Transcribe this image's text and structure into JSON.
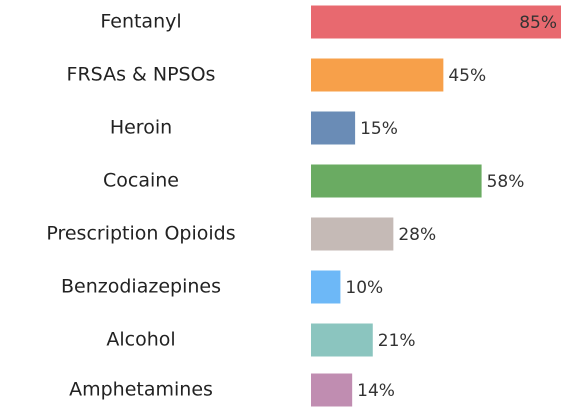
{
  "chart_data": {
    "type": "bar",
    "orientation": "horizontal",
    "categories": [
      "Fentanyl",
      "FRSAs & NPSOs",
      "Heroin",
      "Cocaine",
      "Prescription Opioids",
      "Benzodiazepines",
      "Alcohol",
      "Amphetamines"
    ],
    "values": [
      85,
      45,
      15,
      58,
      28,
      10,
      21,
      14
    ],
    "value_labels": [
      "85%",
      "45%",
      "15%",
      "58%",
      "28%",
      "10%",
      "21%",
      "14%"
    ],
    "colors": [
      "#e8696f",
      "#f7a04a",
      "#6a8cb6",
      "#6aab62",
      "#c5bab6",
      "#6db8f7",
      "#8bc5bf",
      "#c08db1"
    ],
    "xlim": [
      0,
      85
    ]
  }
}
